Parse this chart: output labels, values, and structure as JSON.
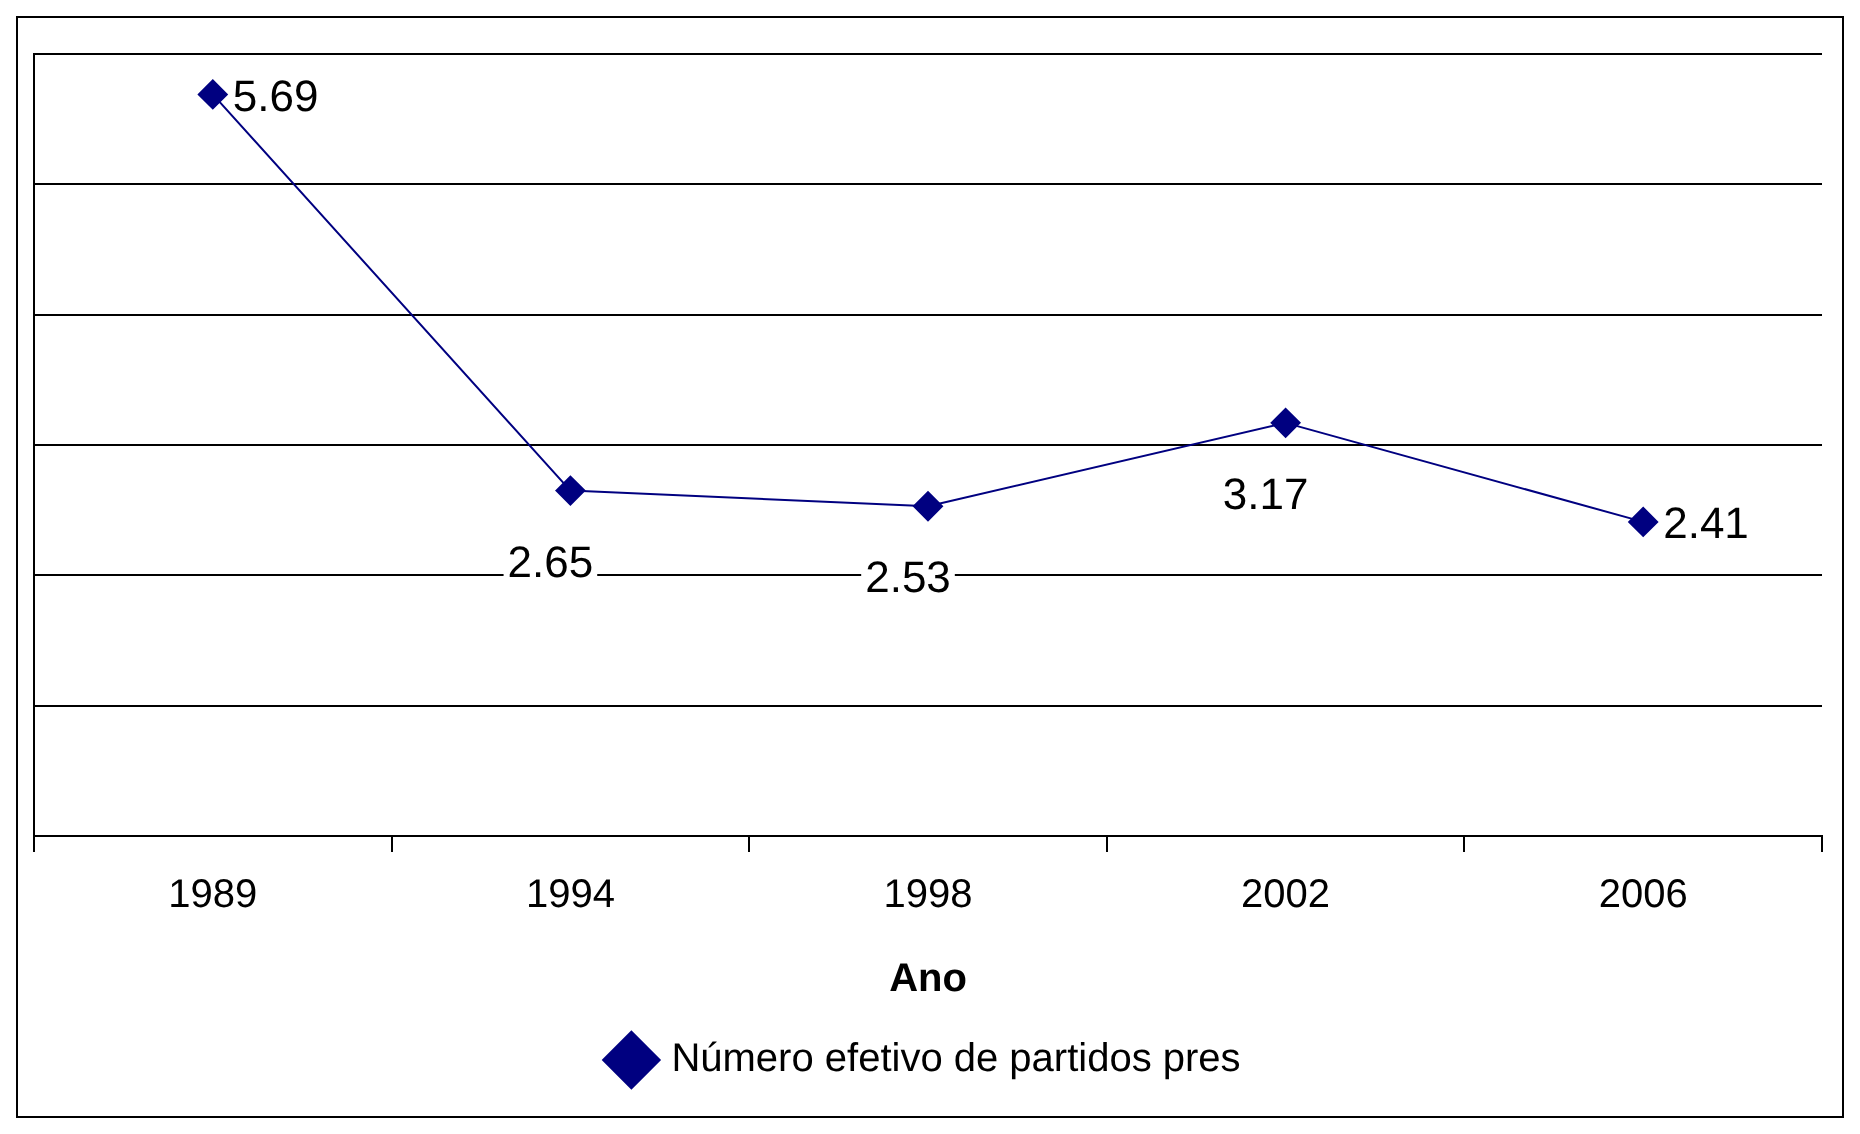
{
  "chart_data": {
    "type": "line",
    "xlabel": "Ano",
    "categories": [
      "1989",
      "1994",
      "1998",
      "2002",
      "2006"
    ],
    "series": [
      {
        "name": "Número efetivo de partidos pres",
        "color": "#000080",
        "values": [
          5.69,
          2.65,
          2.53,
          3.17,
          2.41
        ]
      }
    ],
    "ylim": [
      0,
      6
    ],
    "yticks": [
      {
        "value": 0,
        "label": null
      },
      {
        "value": 1,
        "label": null
      },
      {
        "value": 2,
        "label": null
      },
      {
        "value": 3,
        "label": null
      },
      {
        "value": 4,
        "label": null
      },
      {
        "value": 5,
        "label": null
      },
      {
        "value": 6,
        "label": null
      }
    ],
    "tick_labels": "x",
    "grid": "y",
    "legend": "bottom",
    "marker": "diamond",
    "line_style": "solid",
    "data_labels": true
  }
}
